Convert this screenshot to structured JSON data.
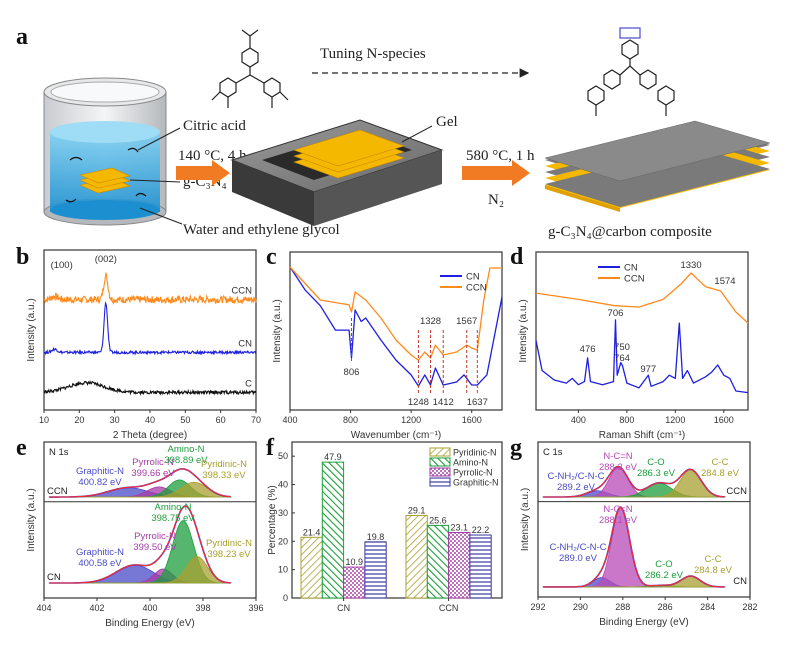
{
  "panel_a": {
    "label": "a",
    "tuning_text": "Tuning N-species",
    "citric_acid": "Citric acid",
    "step1_condition": "140 °C, 4 h",
    "gcn_label": "g-C₃N₄",
    "solvent_label": "Water and ethylene glycol",
    "gel_label": "Gel",
    "step2_condition": "580 °C, 1 h",
    "atmosphere": "N₂",
    "product_label": "g-C₃N₄@carbon composite",
    "colors": {
      "liquid": "#3aa8e0",
      "gel": "#f5b800",
      "arrow": "#f07b22",
      "tray": "#4a4a4a"
    }
  },
  "chart_data": [
    {
      "panel": "b",
      "type": "line",
      "xlabel": "2 Theta (degree)",
      "ylabel": "Intensity (a.u.)",
      "xlim": [
        10,
        70
      ],
      "xticks": [
        "10",
        "20",
        "30",
        "40",
        "50",
        "60",
        "70"
      ],
      "annotations": [
        "(100)",
        "(002)"
      ],
      "series": [
        {
          "name": "CCN",
          "color": "#ff8a1c",
          "baseline": 69,
          "peaks": [
            {
              "x": 13.0,
              "h": 2,
              "s": 1.0
            },
            {
              "x": 27.5,
              "h": 15,
              "s": 0.6
            }
          ],
          "noise": 2.2
        },
        {
          "name": "CN",
          "color": "#1f1fe0",
          "baseline": 36,
          "peaks": [
            {
              "x": 13.0,
              "h": 2,
              "s": 0.8
            },
            {
              "x": 27.5,
              "h": 31,
              "s": 0.5
            }
          ],
          "noise": 0.8
        },
        {
          "name": "C",
          "color": "#111111",
          "baseline": 11,
          "peaks": [
            {
              "x": 22,
              "h": 6,
              "s": 5
            }
          ],
          "noise": 1.0
        }
      ]
    },
    {
      "panel": "c",
      "type": "line",
      "xlabel": "Wavenumber (cm⁻¹)",
      "ylabel": "Intensity (a.u.)",
      "xlim": [
        400,
        1800
      ],
      "xticks": [
        "400",
        "800",
        "1200",
        "1600"
      ],
      "legend": [
        "CN",
        "CCN"
      ],
      "legend_position": "top-right",
      "marked_bands": [
        {
          "x": 806,
          "label": "806",
          "pos": "below-mid"
        },
        {
          "x": 1248,
          "label": "1248",
          "pos": "below"
        },
        {
          "x": 1328,
          "label": "1328",
          "pos": "above"
        },
        {
          "x": 1412,
          "label": "1412",
          "pos": "below"
        },
        {
          "x": 1567,
          "label": "1567",
          "pos": "above"
        },
        {
          "x": 1637,
          "label": "1637",
          "pos": "below"
        }
      ],
      "series": [
        {
          "name": "CN",
          "color": "#1f1fe0",
          "points": [
            [
              400,
              90.5
            ],
            [
              500,
              76
            ],
            [
              600,
              66
            ],
            [
              700,
              50.6
            ],
            [
              790,
              50.6
            ],
            [
              806,
              32.9
            ],
            [
              830,
              63.3
            ],
            [
              870,
              56
            ],
            [
              900,
              58.2
            ],
            [
              1000,
              44.3
            ],
            [
              1100,
              31.6
            ],
            [
              1200,
              22.2
            ],
            [
              1248,
              15.2
            ],
            [
              1290,
              22.2
            ],
            [
              1328,
              15.8
            ],
            [
              1360,
              26.6
            ],
            [
              1412,
              15.8
            ],
            [
              1500,
              17.7
            ],
            [
              1550,
              22.2
            ],
            [
              1600,
              15.8
            ],
            [
              1637,
              15.8
            ],
            [
              1700,
              22.2
            ],
            [
              1800,
              71.5
            ]
          ]
        },
        {
          "name": "CCN",
          "color": "#ff8a1c",
          "points": [
            [
              400,
              90.5
            ],
            [
              600,
              69.6
            ],
            [
              790,
              66.5
            ],
            [
              806,
              62
            ],
            [
              830,
              74.7
            ],
            [
              900,
              69.6
            ],
            [
              1000,
              58.2
            ],
            [
              1100,
              44.3
            ],
            [
              1200,
              34.8
            ],
            [
              1248,
              31.6
            ],
            [
              1290,
              36.7
            ],
            [
              1328,
              32.9
            ],
            [
              1360,
              41.1
            ],
            [
              1412,
              34.8
            ],
            [
              1500,
              36.7
            ],
            [
              1567,
              41.1
            ],
            [
              1600,
              39.2
            ],
            [
              1637,
              38
            ],
            [
              1680,
              69.6
            ],
            [
              1720,
              89.9
            ],
            [
              1800,
              89.9
            ]
          ]
        }
      ]
    },
    {
      "panel": "d",
      "type": "line",
      "xlabel": "Raman Shift (cm⁻¹)",
      "ylabel": "Intensity (a.u.)",
      "xlim": [
        50,
        1800
      ],
      "xticks": [
        "400",
        "800",
        "1200",
        "1600"
      ],
      "legend": [
        "CN",
        "CCN"
      ],
      "legend_position": "top-left",
      "peak_labels": [
        {
          "x": 476,
          "label": "476"
        },
        {
          "x": 706,
          "label": "706"
        },
        {
          "x": 750,
          "label": "750"
        },
        {
          "x": 764,
          "label": "764"
        },
        {
          "x": 977,
          "label": "977"
        },
        {
          "x": 1330,
          "label": "1330"
        },
        {
          "x": 1574,
          "label": "1574"
        }
      ],
      "series": [
        {
          "name": "CN",
          "color": "#1f1fe0",
          "points": [
            [
              50,
              44
            ],
            [
              100,
              25
            ],
            [
              200,
              19
            ],
            [
              300,
              17
            ],
            [
              350,
              20
            ],
            [
              400,
              16
            ],
            [
              450,
              18
            ],
            [
              476,
              33
            ],
            [
              500,
              18
            ],
            [
              600,
              16
            ],
            [
              690,
              18
            ],
            [
              706,
              57
            ],
            [
              720,
              22
            ],
            [
              750,
              30
            ],
            [
              764,
              28
            ],
            [
              800,
              17
            ],
            [
              900,
              14
            ],
            [
              977,
              22
            ],
            [
              1000,
              15
            ],
            [
              1100,
              18
            ],
            [
              1150,
              22
            ],
            [
              1200,
              20
            ],
            [
              1233,
              55
            ],
            [
              1260,
              20
            ],
            [
              1300,
              25
            ],
            [
              1350,
              17
            ],
            [
              1450,
              21
            ],
            [
              1500,
              24
            ],
            [
              1550,
              28.5
            ],
            [
              1600,
              22
            ],
            [
              1650,
              20
            ],
            [
              1700,
              12
            ],
            [
              1800,
              11
            ]
          ]
        },
        {
          "name": "CCN",
          "color": "#ff8a1c",
          "points": [
            [
              50,
              74
            ],
            [
              400,
              70
            ],
            [
              700,
              66
            ],
            [
              900,
              65.2
            ],
            [
              1100,
              70
            ],
            [
              1250,
              80
            ],
            [
              1330,
              86.7
            ],
            [
              1450,
              78
            ],
            [
              1574,
              75.3
            ],
            [
              1700,
              62
            ],
            [
              1800,
              55
            ]
          ]
        }
      ]
    },
    {
      "panel": "e",
      "type": "area",
      "title": "N 1s",
      "xlabel": "Binding Energy (eV)",
      "ylabel": "Intensity (a.u.)",
      "xlim": [
        404,
        396
      ],
      "xticks": [
        "404",
        "402",
        "400",
        "398",
        "396"
      ],
      "samples": [
        {
          "name": "CCN",
          "baseline": 64.7,
          "components": [
            {
              "name": "Graphitic-N",
              "energy": "400.82 eV",
              "x": 400.82,
              "h": 6,
              "s": 0.75,
              "color": "#4a4ac8"
            },
            {
              "name": "Pyrrolic-N",
              "energy": "399.66 eV",
              "x": 399.66,
              "h": 6.5,
              "s": 0.45,
              "color": "#a83aa8"
            },
            {
              "name": "Amino-N",
              "energy": "398.89 eV",
              "x": 398.89,
              "h": 11,
              "s": 0.42,
              "color": "#1e9e3c"
            },
            {
              "name": "Pyridinic-N",
              "energy": "398.33 eV",
              "x": 398.33,
              "h": 9.5,
              "s": 0.5,
              "color": "#a8a030"
            }
          ]
        },
        {
          "name": "CN",
          "baseline": 9.6,
          "components": [
            {
              "name": "Graphitic-N",
              "energy": "400.58 eV",
              "x": 400.58,
              "h": 11.5,
              "s": 0.7,
              "color": "#4a4ac8"
            },
            {
              "name": "Pyrrolic-N",
              "energy": "399.50 eV",
              "x": 399.5,
              "h": 9,
              "s": 0.35,
              "color": "#a83aa8"
            },
            {
              "name": "Amino-N",
              "energy": "398.75 eV",
              "x": 398.75,
              "h": 40,
              "s": 0.4,
              "color": "#1e9e3c"
            },
            {
              "name": "Pyridinic-N",
              "energy": "398.23 eV",
              "x": 398.23,
              "h": 17,
              "s": 0.4,
              "color": "#a8a030"
            }
          ]
        }
      ]
    },
    {
      "panel": "f",
      "type": "bar",
      "ylabel": "Percentage (%)",
      "ylim": [
        0,
        55
      ],
      "yticks": [
        "0",
        "10",
        "20",
        "30",
        "40",
        "50"
      ],
      "categories": [
        "CN",
        "CCN"
      ],
      "legend_position": "top-right",
      "series": [
        {
          "name": "Pyridinic-N",
          "color": "#a8a030",
          "values": [
            21.4,
            29.1
          ],
          "labels": [
            "21.4",
            "29.1"
          ]
        },
        {
          "name": "Amino-N",
          "color": "#1e9e3c",
          "values": [
            47.9,
            25.6
          ],
          "labels": [
            "47.9",
            "25.6"
          ]
        },
        {
          "name": "Pyrrolic-N",
          "color": "#a83aa8",
          "values": [
            10.9,
            23.1
          ],
          "labels": [
            "10.9",
            "23.1"
          ]
        },
        {
          "name": "Graphitic-N",
          "color": "#3a3aa0",
          "values": [
            19.8,
            22.2
          ],
          "labels": [
            "19.8",
            "22.2"
          ]
        }
      ]
    },
    {
      "panel": "g",
      "type": "area",
      "title": "C 1s",
      "xlabel": "Binding Energy (eV)",
      "ylabel": "Intensity (a.u.)",
      "xlim": [
        292,
        282
      ],
      "xticks": [
        "292",
        "290",
        "288",
        "286",
        "284",
        "282"
      ],
      "samples": [
        {
          "name": "CCN",
          "baseline": 64.5,
          "components": [
            {
              "name": "C-NH₂/C-N-C",
              "energy": "289.2 eV",
              "x": 289.2,
              "h": 4,
              "s": 0.5,
              "color": "#4a4ac8"
            },
            {
              "name": "N-C=N",
              "energy": "288.2 eV",
              "x": 288.2,
              "h": 19,
              "s": 0.45,
              "color": "#b84ab8"
            },
            {
              "name": "C-O",
              "energy": "286.3 eV",
              "x": 286.3,
              "h": 9,
              "s": 0.6,
              "color": "#1e9e3c"
            },
            {
              "name": "C-C",
              "energy": "284.8 eV",
              "x": 284.8,
              "h": 17.5,
              "s": 0.5,
              "color": "#a8a030"
            }
          ]
        },
        {
          "name": "CN",
          "baseline": 6.5,
          "components": [
            {
              "name": "C-NH₂/C-N-C",
              "energy": "289.0 eV",
              "x": 289.0,
              "h": 6,
              "s": 0.4,
              "color": "#4a4ac8"
            },
            {
              "name": "N-C=N",
              "energy": "288.1 eV",
              "x": 288.1,
              "h": 51,
              "s": 0.42,
              "color": "#b84ab8"
            },
            {
              "name": "C-O",
              "energy": "286.2 eV",
              "x": 286.2,
              "h": 1,
              "s": 0.5,
              "color": "#1e9e3c"
            },
            {
              "name": "C-C",
              "energy": "284.8 eV",
              "x": 284.8,
              "h": 7,
              "s": 0.45,
              "color": "#a8a030"
            }
          ]
        }
      ]
    }
  ],
  "panel_labels": {
    "b": "b",
    "c": "c",
    "d": "d",
    "e": "e",
    "f": "f",
    "g": "g"
  },
  "colors": {
    "envelope": "#ff2a2a",
    "cn": "#1f1fe0",
    "ccn": "#ff8a1c"
  }
}
